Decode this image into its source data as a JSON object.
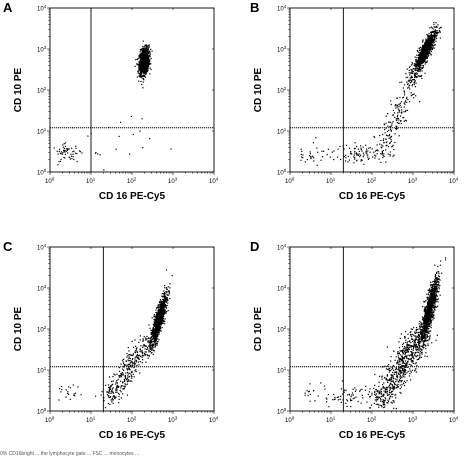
{
  "caption_fragment": "0% CD16bright ... the lymphocyte gate ... FSC ... monocytes ...",
  "chart_data": [
    {
      "type": "scatter",
      "panel": "A",
      "xlabel": "CD 16 PE-Cy5",
      "ylabel": "CD 10 PE",
      "xscale": "log",
      "yscale": "log",
      "xlim": [
        1,
        10000
      ],
      "ylim": [
        1,
        10000
      ],
      "x_ticks": [
        "10^0",
        "10^1",
        "10^2",
        "10^3",
        "10^4"
      ],
      "y_ticks": [
        "10^0",
        "10^1",
        "10^2",
        "10^3",
        "10^4"
      ],
      "gate": {
        "x": 10,
        "y": 12
      },
      "populations": [
        {
          "name": "main",
          "cx": 2.3,
          "cy": 2.7,
          "sx": 0.06,
          "sy": 0.16,
          "rho": 0.25,
          "n": 1100
        },
        {
          "name": "low",
          "cx": 0.42,
          "cy": 0.47,
          "sx": 0.18,
          "sy": 0.1,
          "rho": 0,
          "n": 55
        },
        {
          "name": "scatter",
          "cx": 1.3,
          "cy": 0.7,
          "sx": 0.6,
          "sy": 0.45,
          "rho": 0,
          "n": 25
        }
      ]
    },
    {
      "type": "scatter",
      "panel": "B",
      "xlabel": "CD 16 PE-Cy5",
      "ylabel": "CD 10 PE",
      "xscale": "log",
      "yscale": "log",
      "xlim": [
        1,
        10000
      ],
      "ylim": [
        1,
        10000
      ],
      "x_ticks": [
        "10^0",
        "10^1",
        "10^2",
        "10^3",
        "10^4"
      ],
      "y_ticks": [
        "10^0",
        "10^1",
        "10^2",
        "10^3",
        "10^4"
      ],
      "gate": {
        "x": 20,
        "y": 12
      },
      "populations": [
        {
          "name": "main",
          "cx": 3.3,
          "cy": 2.95,
          "sx": 0.13,
          "sy": 0.25,
          "rho": 0.85,
          "n": 900
        },
        {
          "name": "tail",
          "line": [
            [
              2.2,
              0.35
            ],
            [
              3.1,
              2.6
            ]
          ],
          "spread": 0.12,
          "n": 230
        },
        {
          "name": "low",
          "cx": 1.75,
          "cy": 0.45,
          "sx": 0.35,
          "sy": 0.12,
          "rho": 0,
          "n": 90
        },
        {
          "name": "left",
          "cx": 0.55,
          "cy": 0.45,
          "sx": 0.2,
          "sy": 0.15,
          "rho": 0,
          "n": 30
        }
      ]
    },
    {
      "type": "scatter",
      "panel": "C",
      "xlabel": "CD 16 PE-Cy5",
      "ylabel": "CD 10 PE",
      "xscale": "log",
      "yscale": "log",
      "xlim": [
        1,
        10000
      ],
      "ylim": [
        1,
        10000
      ],
      "x_ticks": [
        "10^0",
        "10^1",
        "10^2",
        "10^3",
        "10^4"
      ],
      "y_ticks": [
        "10^0",
        "10^1",
        "10^2",
        "10^3",
        "10^4"
      ],
      "gate": {
        "x": 20,
        "y": 12
      },
      "populations": [
        {
          "name": "main",
          "cx": 2.65,
          "cy": 2.2,
          "sx": 0.1,
          "sy": 0.32,
          "rho": 0.85,
          "n": 1000
        },
        {
          "name": "tail",
          "line": [
            [
              1.4,
              0.25
            ],
            [
              2.45,
              1.8
            ]
          ],
          "spread": 0.13,
          "n": 330
        },
        {
          "name": "low",
          "cx": 0.45,
          "cy": 0.4,
          "sx": 0.15,
          "sy": 0.12,
          "rho": 0,
          "n": 20
        }
      ]
    },
    {
      "type": "scatter",
      "panel": "D",
      "xlabel": "CD 16 PE-Cy5",
      "ylabel": "CD 10 PE",
      "xscale": "log",
      "yscale": "log",
      "xlim": [
        1,
        10000
      ],
      "ylim": [
        1,
        10000
      ],
      "x_ticks": [
        "10^0",
        "10^1",
        "10^2",
        "10^3",
        "10^4"
      ],
      "y_ticks": [
        "10^0",
        "10^1",
        "10^2",
        "10^3",
        "10^4"
      ],
      "gate": {
        "x": 20,
        "y": 12
      },
      "populations": [
        {
          "name": "main",
          "cx": 3.4,
          "cy": 2.45,
          "sx": 0.11,
          "sy": 0.4,
          "rho": 0.85,
          "n": 1050
        },
        {
          "name": "tail",
          "line": [
            [
              2.2,
              0.2
            ],
            [
              3.25,
              2.0
            ]
          ],
          "spread": 0.16,
          "n": 700
        },
        {
          "name": "low",
          "cx": 1.4,
          "cy": 0.35,
          "sx": 0.3,
          "sy": 0.15,
          "rho": 0,
          "n": 60
        },
        {
          "name": "left",
          "cx": 0.6,
          "cy": 0.5,
          "sx": 0.2,
          "sy": 0.15,
          "rho": 0,
          "n": 15
        }
      ]
    }
  ]
}
